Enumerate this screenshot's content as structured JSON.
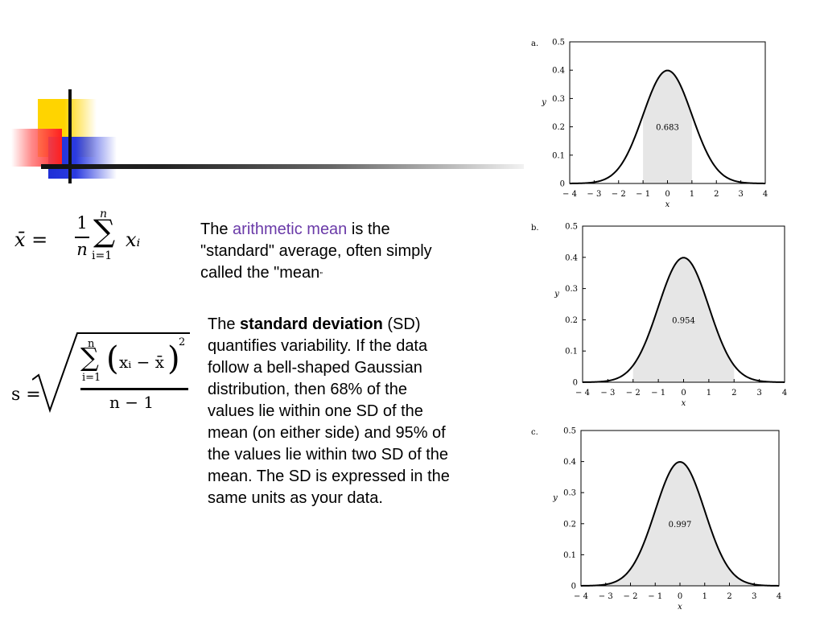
{
  "mean_formula": {
    "lhs": "x̄ =",
    "numerator": "1",
    "denominator": "n",
    "sum_upper": "n",
    "sum_symbol": "∑",
    "sum_lower": "i=1",
    "term": "xᵢ"
  },
  "sd_formula": {
    "lhs": "s =",
    "sum_upper": "n",
    "sum_symbol": "∑",
    "sum_lower": "i=1",
    "paren_left": "(",
    "inner": "xᵢ − x̄",
    "paren_right": ")",
    "exponent": "2",
    "denominator": "n − 1"
  },
  "mean_text": {
    "prefix": "The ",
    "highlight": "arithmetic mean",
    "suffix": " is the \"standard\" average, often simply called the \"mean",
    "end_quote": "\""
  },
  "sd_text": {
    "prefix": "The ",
    "bold": "standard deviation",
    "suffix": " (SD) quantifies variability. If the data follow a bell-shaped Gaussian distribution, then 68% of the values lie within one SD of the mean (on either side) and 95% of the values lie within two SD of the mean. The SD is expressed in the same units as your data."
  },
  "colors": {
    "highlight": "#6a3aa8",
    "shade": "#e6e6e6"
  },
  "chart_data": [
    {
      "type": "area",
      "panel_label": "a.",
      "xlabel": "x",
      "ylabel": "y",
      "xlim": [
        -4,
        4
      ],
      "ylim": [
        0,
        0.5
      ],
      "x_ticks": [
        "− 4",
        "− 3",
        "− 2",
        "− 1",
        "0",
        "1",
        "2",
        "3",
        "4"
      ],
      "y_ticks": [
        "0",
        "0.1",
        "0.2",
        "0.3",
        "0.4",
        "0.5"
      ],
      "curve": "standard normal density",
      "peak": 0.4,
      "shaded_range": [
        -1,
        1
      ],
      "annotation": "0.683"
    },
    {
      "type": "area",
      "panel_label": "b.",
      "xlabel": "x",
      "ylabel": "y",
      "xlim": [
        -4,
        4
      ],
      "ylim": [
        0,
        0.5
      ],
      "x_ticks": [
        "− 4",
        "− 3",
        "− 2",
        "− 1",
        "0",
        "1",
        "2",
        "3",
        "4"
      ],
      "y_ticks": [
        "0",
        "0.1",
        "0.2",
        "0.3",
        "0.4",
        "0.5"
      ],
      "curve": "standard normal density",
      "peak": 0.4,
      "shaded_range": [
        -2,
        2
      ],
      "annotation": "0.954"
    },
    {
      "type": "area",
      "panel_label": "c.",
      "xlabel": "x",
      "ylabel": "y",
      "xlim": [
        -4,
        4
      ],
      "ylim": [
        0,
        0.5
      ],
      "x_ticks": [
        "− 4",
        "− 3",
        "− 2",
        "− 1",
        "0",
        "1",
        "2",
        "3",
        "4"
      ],
      "y_ticks": [
        "0",
        "0.1",
        "0.2",
        "0.3",
        "0.4",
        "0.5"
      ],
      "curve": "standard normal density",
      "peak": 0.4,
      "shaded_range": [
        -3,
        3
      ],
      "annotation": "0.997"
    }
  ]
}
